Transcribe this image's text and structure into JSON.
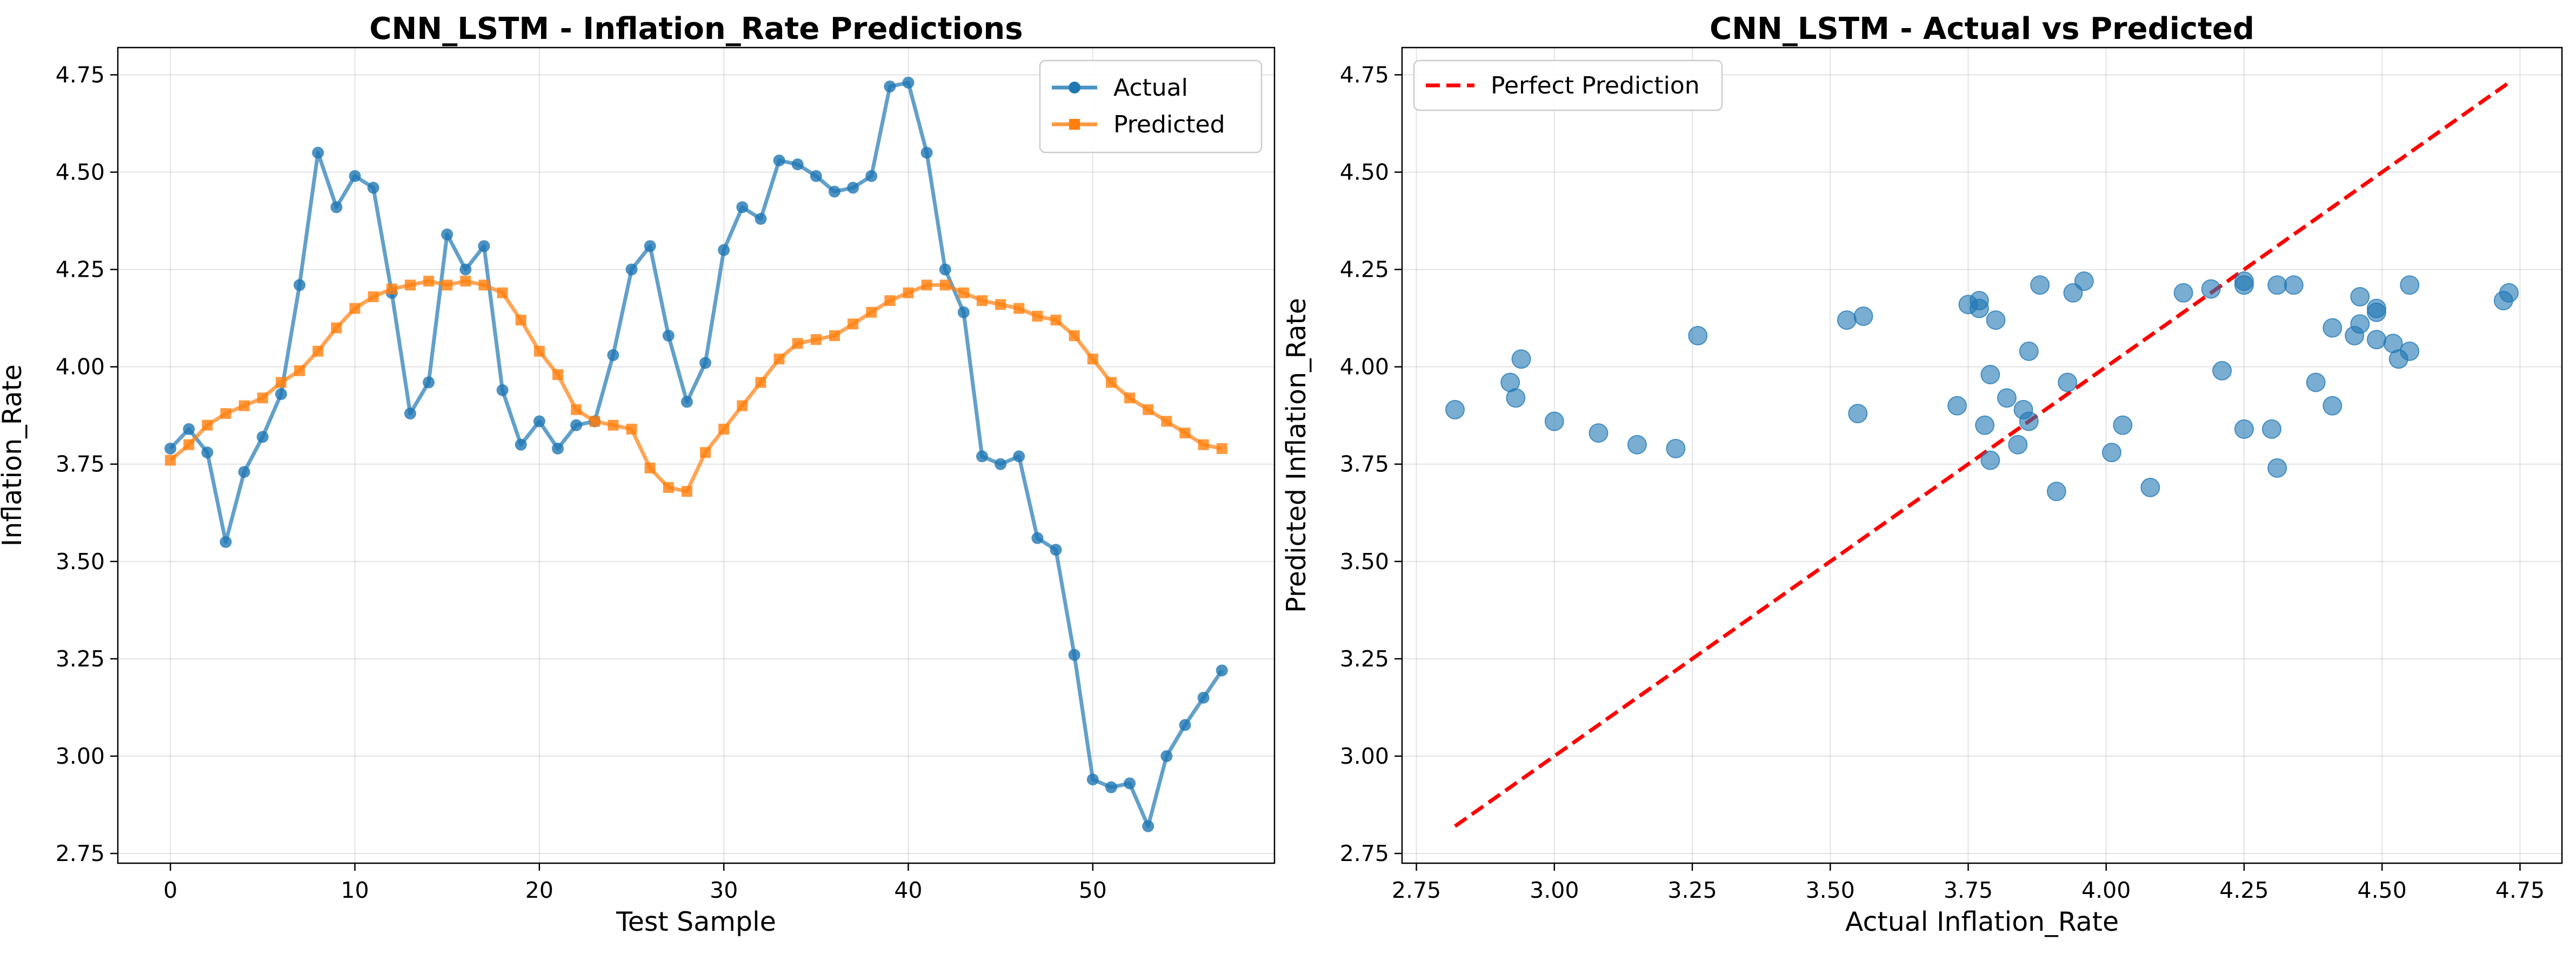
{
  "chart_data": [
    {
      "type": "line",
      "title": "CNN_LSTM - Inflation_Rate Predictions",
      "xlabel": "Test Sample",
      "ylabel": "Inflation_Rate",
      "xlim": [
        -2.85,
        59.85
      ],
      "ylim": [
        2.725,
        4.82
      ],
      "xticks": [
        0,
        10,
        20,
        30,
        40,
        50
      ],
      "yticks": [
        2.75,
        3.0,
        3.25,
        3.5,
        3.75,
        4.0,
        4.25,
        4.5,
        4.75
      ],
      "grid": true,
      "legend": "top-right",
      "series": [
        {
          "name": "Actual",
          "color": "#1f77b4",
          "marker": "circle",
          "values": [
            3.79,
            3.84,
            3.78,
            3.55,
            3.73,
            3.82,
            3.93,
            4.21,
            4.55,
            4.41,
            4.49,
            4.46,
            4.19,
            3.88,
            3.96,
            4.34,
            4.25,
            4.31,
            3.94,
            3.8,
            3.86,
            3.79,
            3.85,
            3.86,
            4.03,
            4.25,
            4.31,
            4.08,
            3.91,
            4.01,
            4.3,
            4.41,
            4.38,
            4.53,
            4.52,
            4.49,
            4.45,
            4.46,
            4.49,
            4.72,
            4.73,
            4.55,
            4.25,
            4.14,
            3.77,
            3.75,
            3.77,
            3.56,
            3.53,
            3.26,
            2.94,
            2.92,
            2.93,
            2.82,
            3.0,
            3.08,
            3.15,
            3.22
          ]
        },
        {
          "name": "Predicted",
          "color": "#ff7f0e",
          "marker": "square",
          "values": [
            3.76,
            3.8,
            3.85,
            3.88,
            3.9,
            3.92,
            3.96,
            3.99,
            4.04,
            4.1,
            4.15,
            4.18,
            4.2,
            4.21,
            4.22,
            4.21,
            4.22,
            4.21,
            4.19,
            4.12,
            4.04,
            3.98,
            3.89,
            3.86,
            3.85,
            3.84,
            3.74,
            3.69,
            3.68,
            3.78,
            3.84,
            3.9,
            3.96,
            4.02,
            4.06,
            4.07,
            4.08,
            4.11,
            4.14,
            4.17,
            4.19,
            4.21,
            4.21,
            4.19,
            4.17,
            4.16,
            4.15,
            4.13,
            4.12,
            4.08,
            4.02,
            3.96,
            3.92,
            3.89,
            3.86,
            3.83,
            3.8,
            3.79
          ]
        }
      ]
    },
    {
      "type": "scatter",
      "title": "CNN_LSTM - Actual vs Predicted",
      "xlabel": "Actual Inflation_Rate",
      "ylabel": "Predicted Inflation_Rate",
      "xlim": [
        2.724,
        4.826
      ],
      "ylim": [
        2.725,
        4.82
      ],
      "xticks": [
        2.75,
        3.0,
        3.25,
        3.5,
        3.75,
        4.0,
        4.25,
        4.5,
        4.75
      ],
      "yticks": [
        2.75,
        3.0,
        3.25,
        3.5,
        3.75,
        4.0,
        4.25,
        4.5,
        4.75
      ],
      "grid": true,
      "legend": "top-left",
      "reference_line": {
        "name": "Perfect Prediction",
        "color": "#ff0000",
        "style": "dashed",
        "from": [
          2.82,
          2.82
        ],
        "to": [
          4.73,
          4.73
        ]
      },
      "points_color": "#1f77b4",
      "points": [
        [
          3.79,
          3.76
        ],
        [
          3.84,
          3.8
        ],
        [
          3.78,
          3.85
        ],
        [
          3.55,
          3.88
        ],
        [
          3.73,
          3.9
        ],
        [
          3.82,
          3.92
        ],
        [
          3.93,
          3.96
        ],
        [
          4.21,
          3.99
        ],
        [
          4.55,
          4.04
        ],
        [
          4.41,
          4.1
        ],
        [
          4.49,
          4.15
        ],
        [
          4.46,
          4.18
        ],
        [
          4.19,
          4.2
        ],
        [
          3.88,
          4.21
        ],
        [
          3.96,
          4.22
        ],
        [
          4.34,
          4.21
        ],
        [
          4.25,
          4.22
        ],
        [
          4.31,
          4.21
        ],
        [
          3.94,
          4.19
        ],
        [
          3.8,
          4.12
        ],
        [
          3.86,
          4.04
        ],
        [
          3.79,
          3.98
        ],
        [
          3.85,
          3.89
        ],
        [
          3.86,
          3.86
        ],
        [
          4.03,
          3.85
        ],
        [
          4.25,
          3.84
        ],
        [
          4.31,
          3.74
        ],
        [
          4.08,
          3.69
        ],
        [
          3.91,
          3.68
        ],
        [
          4.01,
          3.78
        ],
        [
          4.3,
          3.84
        ],
        [
          4.41,
          3.9
        ],
        [
          4.38,
          3.96
        ],
        [
          4.53,
          4.02
        ],
        [
          4.52,
          4.06
        ],
        [
          4.49,
          4.07
        ],
        [
          4.45,
          4.08
        ],
        [
          4.46,
          4.11
        ],
        [
          4.49,
          4.14
        ],
        [
          4.72,
          4.17
        ],
        [
          4.73,
          4.19
        ],
        [
          4.55,
          4.21
        ],
        [
          4.25,
          4.21
        ],
        [
          4.14,
          4.19
        ],
        [
          3.77,
          4.17
        ],
        [
          3.75,
          4.16
        ],
        [
          3.77,
          4.15
        ],
        [
          3.56,
          4.13
        ],
        [
          3.53,
          4.12
        ],
        [
          3.26,
          4.08
        ],
        [
          2.94,
          4.02
        ],
        [
          2.92,
          3.96
        ],
        [
          2.93,
          3.92
        ],
        [
          2.82,
          3.89
        ],
        [
          3.0,
          3.86
        ],
        [
          3.08,
          3.83
        ],
        [
          3.15,
          3.8
        ],
        [
          3.22,
          3.79
        ]
      ]
    }
  ]
}
